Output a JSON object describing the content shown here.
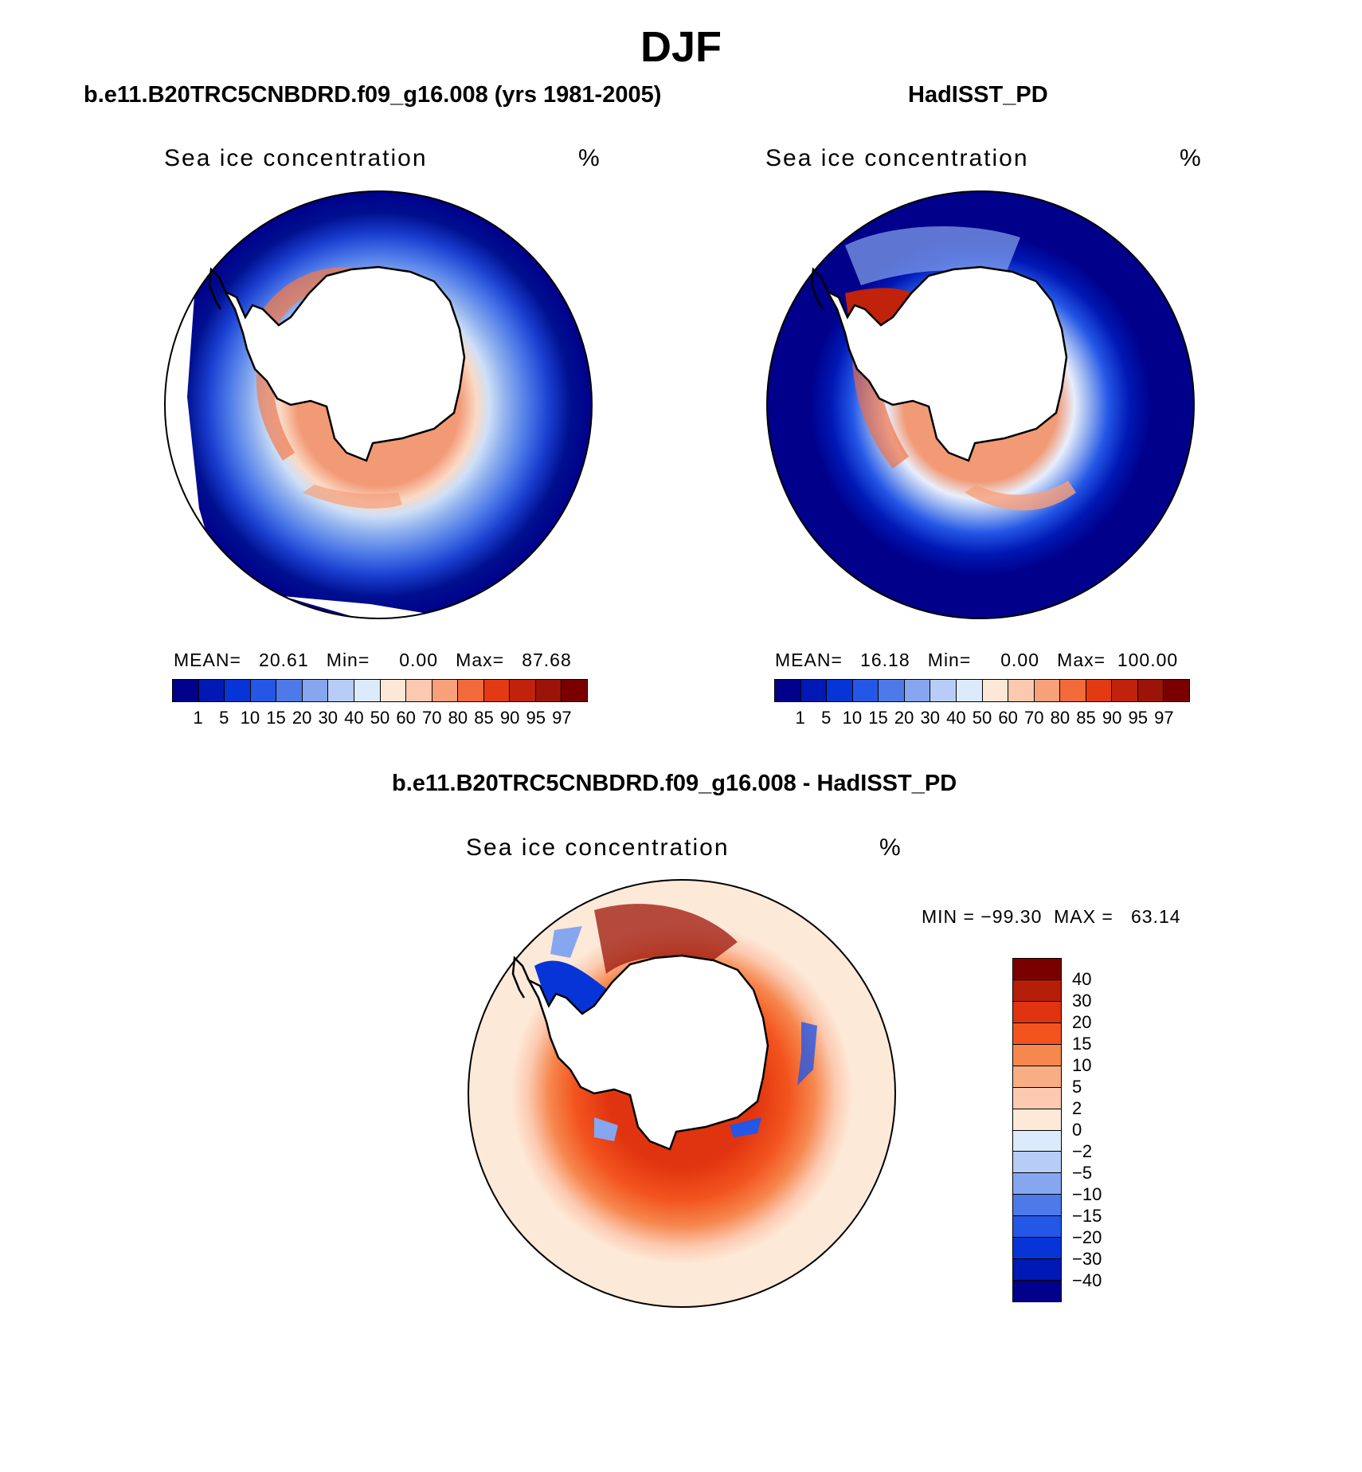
{
  "header": {
    "title": "DJF",
    "left_subtitle": "b.e11.B20TRC5CNBDRD.f09_g16.008 (yrs 1981-2005)",
    "right_subtitle": "HadISST_PD",
    "diff_subtitle": "b.e11.B20TRC5CNBDRD.f09_g16.008 - HadISST_PD"
  },
  "panels": [
    {
      "variable": "Sea ice concentration",
      "units": "%",
      "stats_line": "MEAN=   20.61   Min=     0.00   Max=   87.68"
    },
    {
      "variable": "Sea ice concentration",
      "units": "%",
      "stats_line": "MEAN=   16.18   Min=     0.00   Max=  100.00"
    }
  ],
  "diff_panel": {
    "variable": "Sea ice concentration",
    "units": "%",
    "minmax_line": "MIN = −99.30  MAX =   63.14"
  },
  "colorbar_abs": {
    "labels": [
      "1",
      "5",
      "10",
      "15",
      "20",
      "30",
      "40",
      "50",
      "60",
      "70",
      "80",
      "85",
      "90",
      "95",
      "97"
    ],
    "colors": [
      "#00008b",
      "#0018b4",
      "#0634d6",
      "#2457e6",
      "#4d7ae8",
      "#86a6ef",
      "#b7cdf7",
      "#dcebfb",
      "#fde8d8",
      "#fbc9b0",
      "#f7a07a",
      "#f36a3a",
      "#e43a14",
      "#c0220c",
      "#9c1408",
      "#7a0000"
    ]
  },
  "colorbar_diff": {
    "labels": [
      "40",
      "30",
      "20",
      "15",
      "10",
      "5",
      "2",
      "0",
      "−2",
      "−5",
      "−10",
      "−15",
      "−20",
      "−30",
      "−40"
    ],
    "colors": [
      "#7a0000",
      "#b51e08",
      "#e0330f",
      "#f3541e",
      "#f6874e",
      "#f9ad84",
      "#fccab0",
      "#fde9d8",
      "#dcebfb",
      "#b7cdf7",
      "#86a6ef",
      "#4d7ae8",
      "#2457e6",
      "#0634d6",
      "#0018b4",
      "#00008b"
    ]
  }
}
